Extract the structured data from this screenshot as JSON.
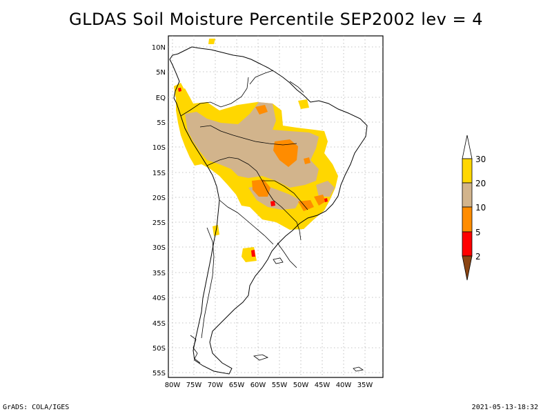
{
  "title": "GLDAS Soil Moisture Percentile SEP2002 lev = 4",
  "lat_ticks": [
    "10N",
    "5N",
    "EQ",
    "5S",
    "10S",
    "15S",
    "20S",
    "25S",
    "30S",
    "35S",
    "40S",
    "45S",
    "50S",
    "55S"
  ],
  "lon_ticks": [
    "80W",
    "75W",
    "70W",
    "65W",
    "60W",
    "55W",
    "50W",
    "45W",
    "40W",
    "35W"
  ],
  "colorbar": {
    "labels": [
      "2",
      "5",
      "10",
      "20",
      "30"
    ],
    "colors": {
      "lt2": "#8b4513",
      "2to5": "#ff0000",
      "5to10": "#ff8c00",
      "10to20": "#d2b48c",
      "20to30": "#ffd700",
      "gt30": "#ffffff"
    }
  },
  "footer": {
    "left": "GrADS: COLA/IGES",
    "right": "2021-05-13-18:32"
  }
}
